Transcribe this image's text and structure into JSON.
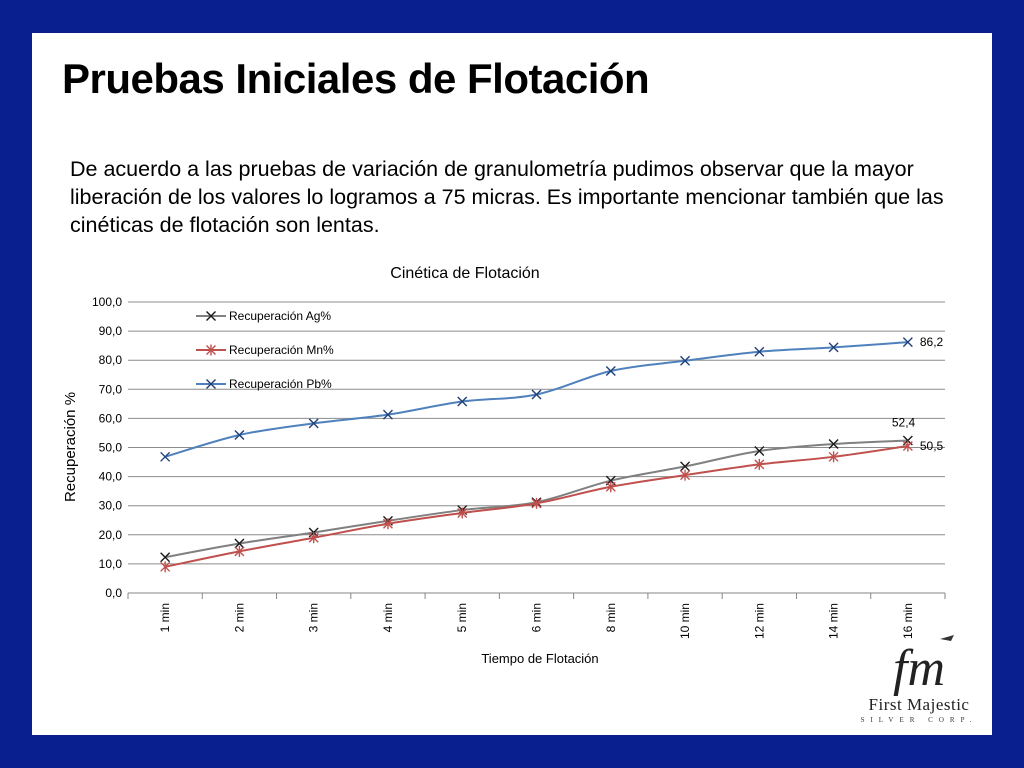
{
  "slide": {
    "title": "Pruebas Iniciales de Flotación",
    "body": "De acuerdo a las pruebas de variación de granulometría pudimos observar que la mayor liberación de los valores lo logramos a 75 micras. Es importante mencionar también que las cinéticas de flotación son lentas."
  },
  "logo": {
    "monogram": "fm",
    "company": "First Majestic",
    "subtitle": "SILVER CORP."
  },
  "chart_data": {
    "type": "line",
    "title": "Cinética de Flotación",
    "xlabel": "Tiempo de Flotación",
    "ylabel": "Recuperación %",
    "categories": [
      "1 min",
      "2 min",
      "3 min",
      "4 min",
      "5 min",
      "6 min",
      "8 min",
      "10 min",
      "12 min",
      "14 min",
      "16 min"
    ],
    "ylim": [
      0,
      100
    ],
    "yticks": [
      "0,0",
      "10,0",
      "20,0",
      "30,0",
      "40,0",
      "50,0",
      "60,0",
      "70,0",
      "80,0",
      "90,0",
      "100,0"
    ],
    "grid": true,
    "legend_position": "top-left",
    "series": [
      {
        "name": "Recuperación Ag%",
        "color": "#808080",
        "marker": "x",
        "values": [
          12.3,
          17.0,
          20.8,
          24.8,
          28.5,
          31.2,
          38.6,
          43.5,
          48.8,
          51.2,
          52.4
        ],
        "end_label": "52,4"
      },
      {
        "name": "Recuperación Mn%",
        "color": "#c0504d",
        "marker": "star",
        "values": [
          9.0,
          14.3,
          19.0,
          23.8,
          27.5,
          30.8,
          36.5,
          40.5,
          44.2,
          46.8,
          50.5
        ],
        "end_label": "50,5"
      },
      {
        "name": "Recuperación Pb%",
        "color": "#4f81bd",
        "marker": "x",
        "values": [
          46.8,
          54.3,
          58.3,
          61.3,
          65.8,
          68.2,
          76.3,
          79.8,
          82.9,
          84.4,
          86.2
        ],
        "end_label": "86,2"
      }
    ]
  }
}
